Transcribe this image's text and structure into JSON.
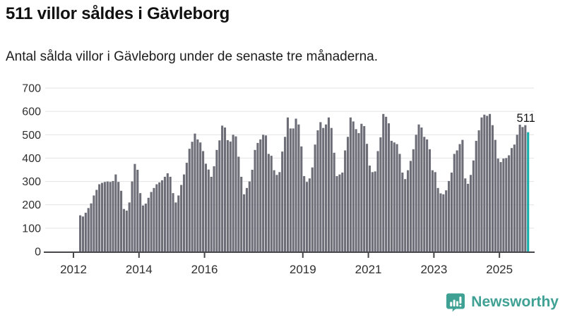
{
  "header": {
    "title": "511 villor såldes i Gävleborg",
    "subtitle": "Antal sålda villor i Gävleborg under de senaste tre månaderna."
  },
  "highlight": {
    "label": "511",
    "value": 511
  },
  "branding": {
    "name": "Newsworthy",
    "icon": "newsworthy-chart-bubble-icon"
  },
  "colors": {
    "bar": "#6d6d78",
    "highlight_bar": "#15b0ab",
    "brand": "#3fa094",
    "grid": "#e3e3e6",
    "axis": "#47474b",
    "tick_text": "#2f2f2f",
    "label_text": "#111111"
  },
  "chart_data": {
    "type": "bar",
    "title": "511 villor såldes i Gävleborg",
    "subtitle": "Antal sålda villor i Gävleborg under de senaste tre månaderna.",
    "unit": "sålda villor (rullande 3 månader)",
    "frequency": "monthly",
    "x_start": "2012-03",
    "x_end": "2025-11",
    "ylim": [
      0,
      700
    ],
    "yticks": [
      0,
      100,
      200,
      300,
      400,
      500,
      600,
      700
    ],
    "xticks": [
      2012,
      2014,
      2016,
      2019,
      2021,
      2023,
      2025
    ],
    "grid": "horizontal",
    "legend": "none",
    "highlight_last": true,
    "highlight_label": "511",
    "values": [
      155,
      150,
      166,
      186,
      206,
      240,
      264,
      288,
      294,
      298,
      300,
      298,
      302,
      330,
      298,
      260,
      182,
      175,
      210,
      300,
      375,
      350,
      250,
      197,
      205,
      230,
      255,
      272,
      288,
      296,
      305,
      320,
      335,
      320,
      250,
      210,
      240,
      285,
      330,
      380,
      440,
      470,
      505,
      480,
      467,
      430,
      376,
      351,
      320,
      365,
      435,
      476,
      539,
      531,
      477,
      471,
      500,
      493,
      406,
      320,
      245,
      272,
      300,
      350,
      435,
      465,
      480,
      500,
      497,
      418,
      410,
      348,
      328,
      340,
      428,
      491,
      574,
      527,
      527,
      569,
      544,
      450,
      323,
      298,
      313,
      360,
      458,
      519,
      554,
      529,
      544,
      574,
      529,
      423,
      323,
      330,
      338,
      433,
      491,
      574,
      557,
      524,
      507,
      547,
      537,
      461,
      368,
      340,
      343,
      430,
      489,
      589,
      577,
      549,
      474,
      467,
      460,
      418,
      338,
      310,
      348,
      388,
      438,
      500,
      544,
      531,
      491,
      480,
      438,
      348,
      340,
      272,
      249,
      245,
      262,
      302,
      338,
      418,
      433,
      460,
      478,
      313,
      290,
      328,
      390,
      474,
      519,
      574,
      586,
      581,
      589,
      541,
      478,
      398,
      383,
      398,
      400,
      412,
      443,
      458,
      500,
      543,
      533,
      541,
      511
    ]
  }
}
